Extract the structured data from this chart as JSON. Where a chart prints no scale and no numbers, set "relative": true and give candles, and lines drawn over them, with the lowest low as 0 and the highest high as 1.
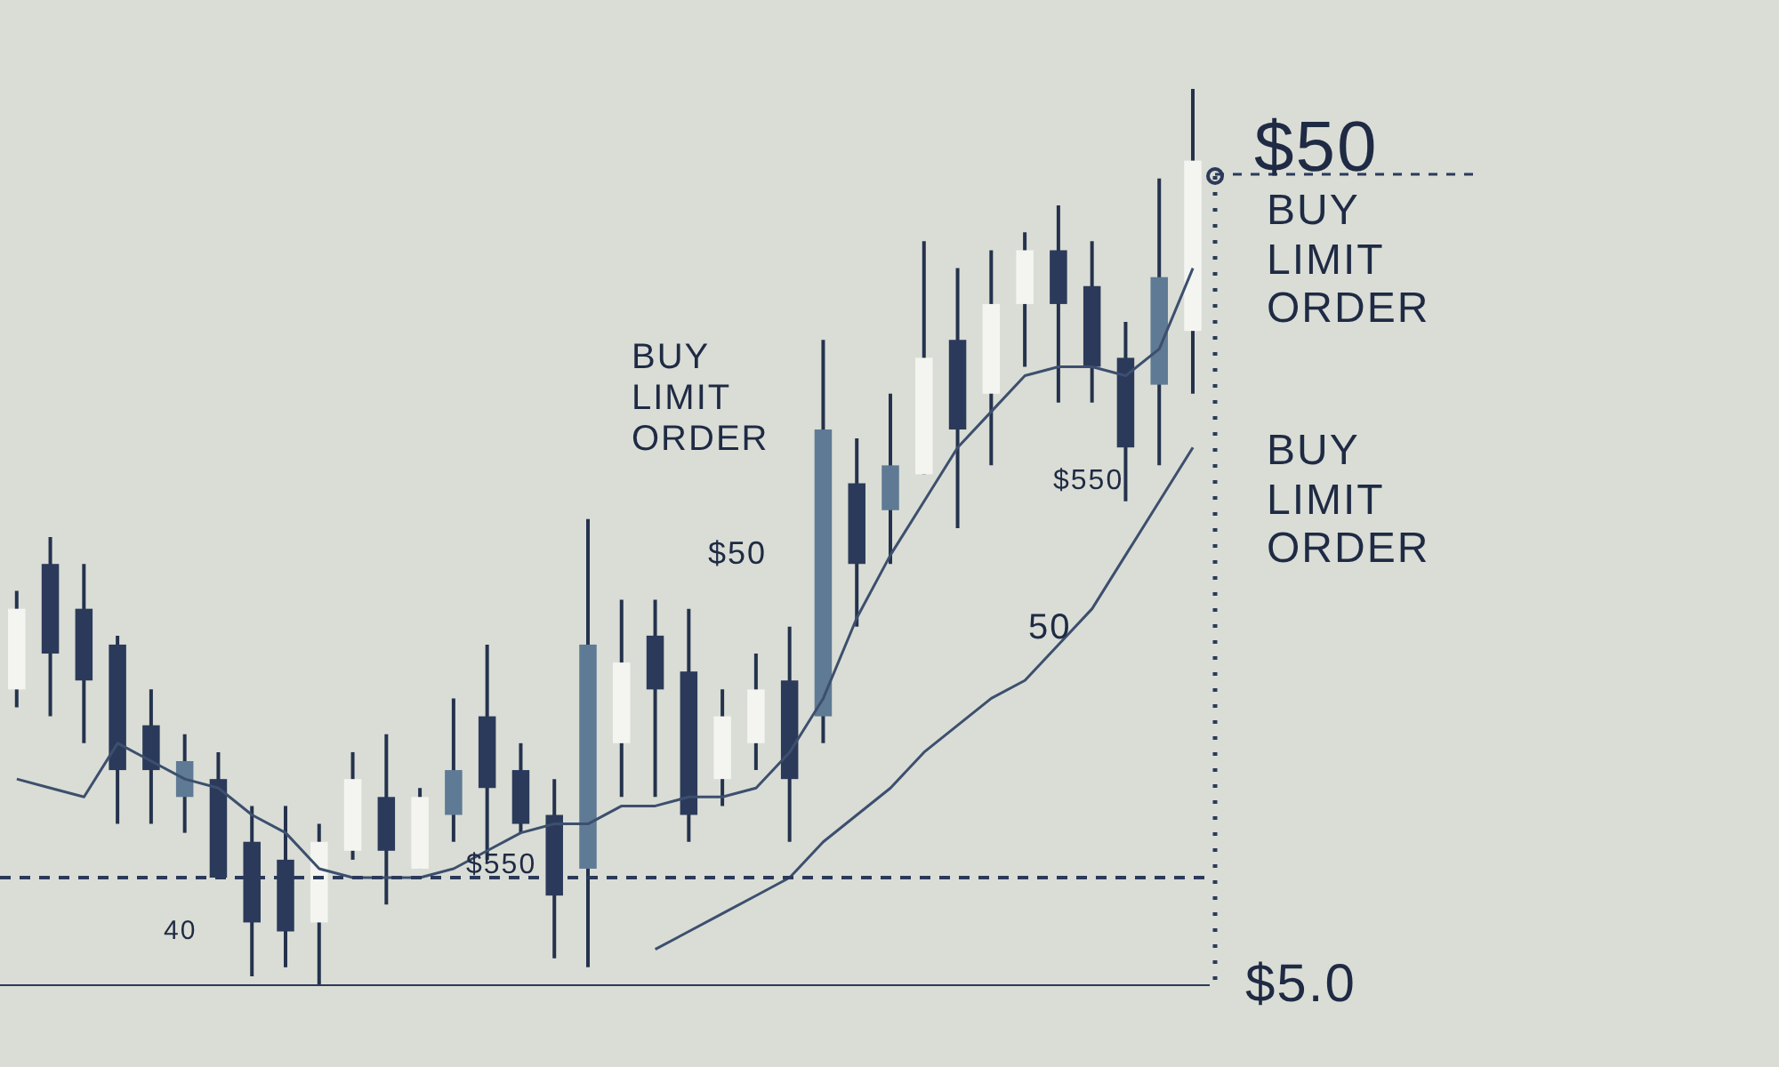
{
  "chart_data": {
    "type": "candlestick",
    "relative": true,
    "categories": [
      null,
      null,
      null,
      null,
      null,
      null,
      null,
      null,
      null,
      null,
      null,
      null,
      null,
      null,
      null,
      null,
      null,
      null,
      null,
      null,
      null,
      null,
      null,
      null,
      null,
      null,
      null,
      null,
      null,
      null,
      null,
      null,
      null,
      null,
      null,
      null
    ],
    "ohlc": [
      [
        0.33,
        0.44,
        0.31,
        0.42
      ],
      [
        0.47,
        0.5,
        0.3,
        0.37
      ],
      [
        0.42,
        0.47,
        0.27,
        0.34
      ],
      [
        0.38,
        0.39,
        0.18,
        0.24
      ],
      [
        0.29,
        0.33,
        0.18,
        0.24
      ],
      [
        0.25,
        0.28,
        0.17,
        0.21
      ],
      [
        0.23,
        0.26,
        0.12,
        0.12
      ],
      [
        0.16,
        0.2,
        0.01,
        0.07
      ],
      [
        0.14,
        0.2,
        0.02,
        0.06
      ],
      [
        0.07,
        0.18,
        0,
        0.16
      ],
      [
        0.15,
        0.26,
        0.14,
        0.23
      ],
      [
        0.21,
        0.28,
        0.09,
        0.15
      ],
      [
        0.13,
        0.22,
        0.13,
        0.21
      ],
      [
        0.24,
        0.32,
        0.16,
        0.19
      ],
      [
        0.3,
        0.38,
        0.14,
        0.22
      ],
      [
        0.24,
        0.27,
        0.17,
        0.18
      ],
      [
        0.19,
        0.23,
        0.03,
        0.1
      ],
      [
        0.13,
        0.52,
        0.02,
        0.38
      ],
      [
        0.27,
        0.43,
        0.21,
        0.36
      ],
      [
        0.39,
        0.43,
        0.21,
        0.33
      ],
      [
        0.35,
        0.42,
        0.16,
        0.19
      ],
      [
        0.23,
        0.33,
        0.2,
        0.3
      ],
      [
        0.27,
        0.37,
        0.24,
        0.33
      ],
      [
        0.34,
        0.4,
        0.16,
        0.23
      ],
      [
        0.3,
        0.72,
        0.27,
        0.62
      ],
      [
        0.56,
        0.61,
        0.4,
        0.47
      ],
      [
        0.58,
        0.66,
        0.47,
        0.53
      ],
      [
        0.57,
        0.83,
        0.57,
        0.7
      ],
      [
        0.72,
        0.8,
        0.51,
        0.62
      ],
      [
        0.66,
        0.82,
        0.58,
        0.76
      ],
      [
        0.76,
        0.84,
        0.69,
        0.82
      ],
      [
        0.82,
        0.87,
        0.65,
        0.76
      ],
      [
        0.78,
        0.83,
        0.65,
        0.69
      ],
      [
        0.7,
        0.74,
        0.54,
        0.6
      ],
      [
        0.67,
        0.9,
        0.58,
        0.79
      ],
      [
        0.73,
        1,
        0.66,
        0.92
      ]
    ],
    "colors": [
      "#f4f5f1",
      "#2b3a5a",
      "#2b3a5a",
      "#2b3a5a",
      "#2b3a5a",
      "#5f7a94",
      "#2b3a5a",
      "#2b3a5a",
      "#2b3a5a",
      "#f4f5f1",
      "#f4f5f1",
      "#2b3a5a",
      "#f4f5f1",
      "#5f7a94",
      "#2b3a5a",
      "#2b3a5a",
      "#2b3a5a",
      "#5f7a94",
      "#f4f5f1",
      "#2b3a5a",
      "#2b3a5a",
      "#f4f5f1",
      "#f4f5f1",
      "#2b3a5a",
      "#5f7a94",
      "#2b3a5a",
      "#5f7a94",
      "#f4f5f1",
      "#2b3a5a",
      "#f4f5f1",
      "#f4f5f1",
      "#2b3a5a",
      "#2b3a5a",
      "#2b3a5a",
      "#5f7a94",
      "#f4f5f1"
    ],
    "series": [
      {
        "type": "line",
        "color": "#3d4f6e",
        "values": [
          0.23,
          0.22,
          0.21,
          0.27,
          0.25,
          0.23,
          0.22,
          0.19,
          0.17,
          0.13,
          0.12,
          0.12,
          0.12,
          0.13,
          0.15,
          0.17,
          0.18,
          0.18,
          0.2,
          0.2,
          0.21,
          0.21,
          0.22,
          0.26,
          0.32,
          0.41,
          0.48,
          0.54,
          0.6,
          0.64,
          0.68,
          0.69,
          0.69,
          0.68,
          0.71,
          0.8
        ]
      },
      {
        "type": "line",
        "color": "#3d4f6e",
        "values": [
          null,
          null,
          null,
          null,
          null,
          null,
          null,
          null,
          null,
          null,
          null,
          null,
          null,
          null,
          null,
          null,
          null,
          null,
          null,
          0.04,
          0.06,
          0.08,
          0.1,
          0.12,
          0.16,
          0.19,
          0.22,
          0.26,
          0.29,
          0.32,
          0.34,
          0.38,
          0.42,
          0.48,
          0.54,
          0.6
        ]
      }
    ],
    "ref_lines": [
      {
        "axis": "y",
        "value": 0.12,
        "color": "#2b3a5a",
        "line_style": "dashed"
      }
    ],
    "annotations": [
      "$50",
      "BUY\nLIMIT\nORDER",
      "BUY\nLIMIT\nORDER",
      "BUY\nLIMIT\nORDER",
      "$5.0",
      "$550",
      "$550",
      "$50",
      "50",
      "40"
    ]
  }
}
